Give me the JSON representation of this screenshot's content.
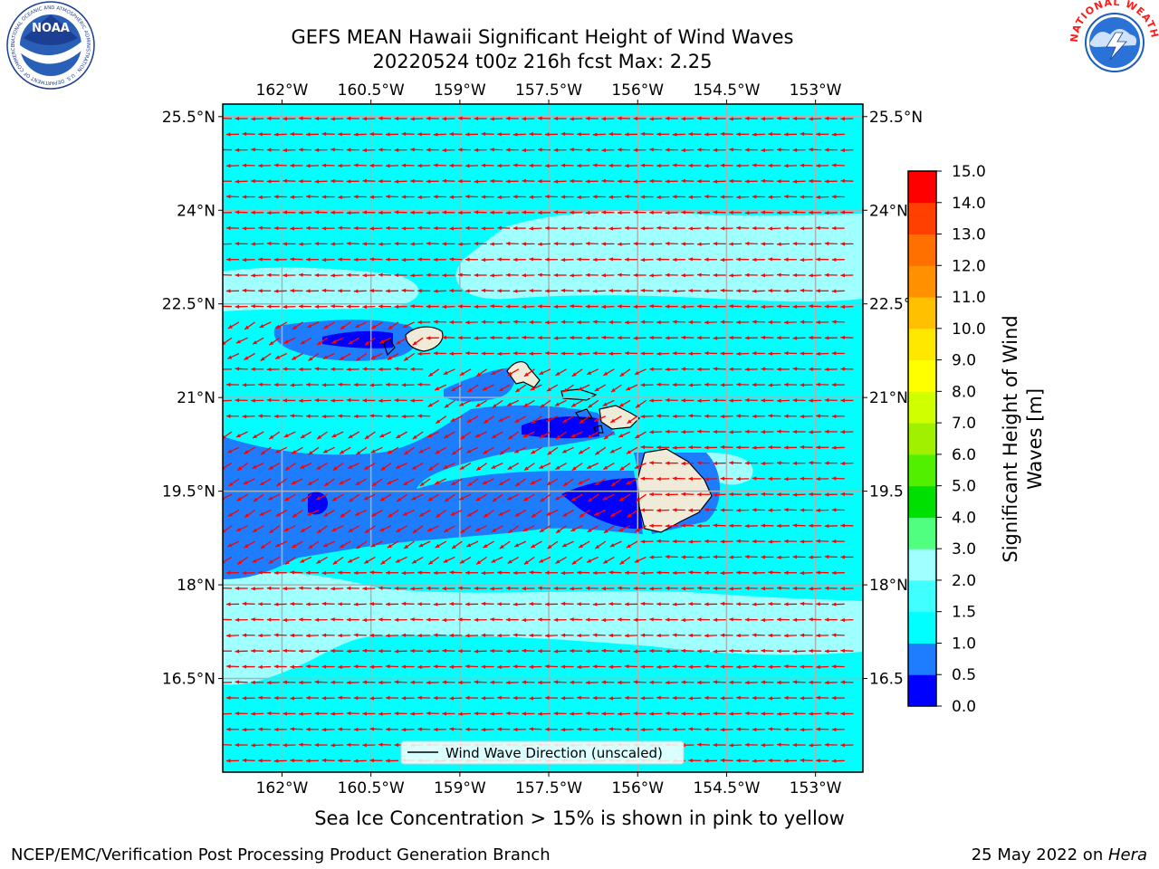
{
  "title": {
    "line1": "GEFS MEAN Hawaii Significant Height of Wind Waves",
    "line2": "20220524 t00z 216h fcst   Max: 2.25"
  },
  "logos": {
    "noaa_text": "NOAA",
    "noaa_ring": "NATIONAL OCEANIC AND ATMOSPHERIC ADMINISTRATION · U.S. DEPARTMENT OF COMMERCE",
    "nws_ring": "NATIONAL WEATHER SERVICE"
  },
  "map": {
    "lon_range": [
      -163,
      -152.2
    ],
    "lat_range": [
      15,
      25.7
    ],
    "lon_ticks": [
      "162°W",
      "160.5°W",
      "159°W",
      "157.5°W",
      "156°W",
      "154.5°W",
      "153°W"
    ],
    "lat_ticks_left": [
      "25.5°N",
      "24°N",
      "22.5°N",
      "21°N",
      "19.5°N",
      "18°N",
      "16.5°N"
    ],
    "lat_ticks_right": [
      "25.5°N",
      "24°N",
      "22.5°",
      "21°N",
      "19.5",
      "18°N",
      "16.5"
    ],
    "grid": true,
    "ocean_color": "#00ffff",
    "field_colors": {
      "0.0-0.5": "#0000ff",
      "0.5-1.0": "#1e7cff",
      "1.0-1.5": "#00ffff",
      "1.5-2.0": "#40ffff",
      "2.0-3.0": "#a0ffff"
    },
    "land_color": "#efebd8",
    "arrow_color": "#ff0000",
    "legend_label": "Wind Wave Direction (unscaled)"
  },
  "colorbar": {
    "label_line1": "Significant Height of Wind",
    "label_line2": "Waves [m]",
    "ticks": [
      "0.0",
      "0.5",
      "1.0",
      "1.5",
      "2.0",
      "3.0",
      "4.0",
      "5.0",
      "6.0",
      "7.0",
      "8.0",
      "9.0",
      "10.0",
      "11.0",
      "12.0",
      "13.0",
      "14.0",
      "15.0"
    ],
    "colors": [
      "#0000ff",
      "#1e7cff",
      "#00ffff",
      "#40ffff",
      "#a0ffff",
      "#50ff80",
      "#00e000",
      "#50f000",
      "#a0f000",
      "#d0ff00",
      "#ffff00",
      "#ffe800",
      "#ffc000",
      "#ff9000",
      "#ff7000",
      "#ff4000",
      "#ff0000"
    ]
  },
  "footer": {
    "sea_ice_note": "Sea Ice Concentration > 15% is shown in pink to yellow",
    "left_credit": "NCEP/EMC/Verification Post Processing Product Generation Branch",
    "right_credit_prefix": "25 May 2022 on ",
    "right_credit_host": "Hera"
  }
}
